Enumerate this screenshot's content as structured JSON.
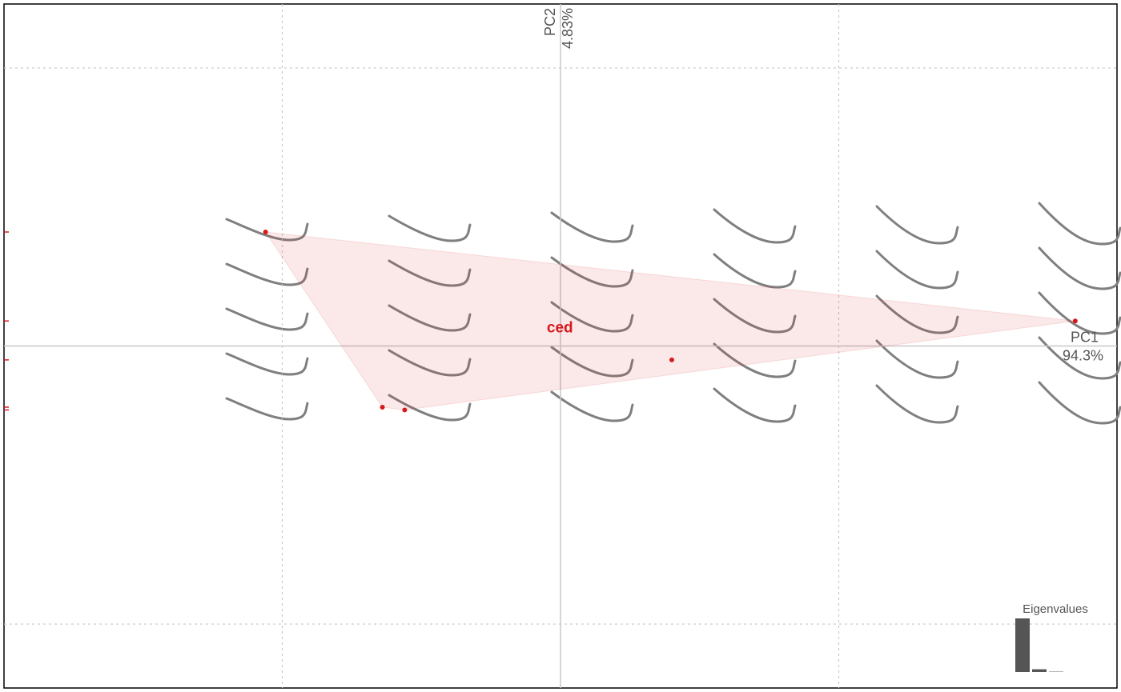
{
  "chart_data": {
    "type": "scatter",
    "xlabel": "PC1",
    "xlabel_sub": "94.3%",
    "ylabel": "PC2",
    "ylabel_sub": "4.83%",
    "xlim": [
      -0.2,
      0.2
    ],
    "ylim": [
      -0.123,
      0.123
    ],
    "xticks": [
      -0.1,
      0,
      0.1
    ],
    "yticks": [
      -0.1,
      0,
      0.1
    ],
    "grid": true,
    "x": [
      -0.106,
      -0.064,
      -0.056,
      0.04,
      0.185
    ],
    "series": [
      {
        "name": "ced",
        "color": "#d7191c",
        "values": [
          0.041,
          -0.022,
          -0.023,
          -0.005,
          0.009
        ]
      }
    ],
    "eigenvalues": {
      "title": "Eigenvalues",
      "values": [
        94.3,
        4.83,
        0.6
      ],
      "color": "#555555"
    }
  }
}
